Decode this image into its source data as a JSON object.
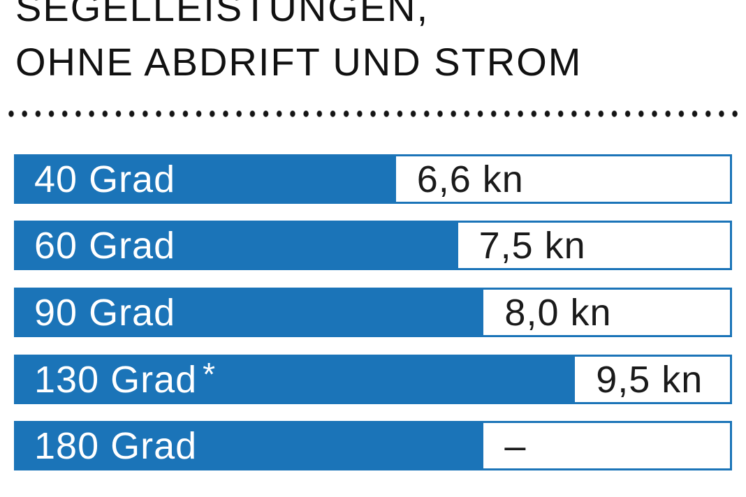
{
  "header": {
    "title_line1": "SEGELLEISTUNGEN,",
    "title_line2": "OHNE ABDRIFT UND STROM"
  },
  "colors": {
    "bar_blue": "#1b74b8",
    "text_dark": "#141414",
    "label_white": "#ffffff"
  },
  "chart_data": {
    "type": "bar",
    "orientation": "horizontal",
    "title": "SEGELLEISTUNGEN, OHNE ABDRIFT UND STROM",
    "categories": [
      "40 Grad",
      "60 Grad",
      "90 Grad",
      "130 Grad *",
      "180 Grad"
    ],
    "values": [
      6.6,
      7.5,
      8.0,
      9.5,
      null
    ],
    "value_labels": [
      "6,6 kn",
      "7,5 kn",
      "8,0 kn",
      "9,5 kn",
      "–"
    ],
    "unit": "kn",
    "footnote_marker_on": "130 Grad",
    "bar_fractions_of_track": [
      0.532,
      0.619,
      0.655,
      0.783,
      0.655
    ],
    "legend": "none",
    "grid": "off"
  },
  "rows": [
    {
      "label": "40 Grad",
      "note": "",
      "value": "6,6 kn",
      "bar_pct": 53.2
    },
    {
      "label": "60 Grad",
      "note": "",
      "value": "7,5 kn",
      "bar_pct": 61.9
    },
    {
      "label": "90 Grad",
      "note": "",
      "value": "8,0 kn",
      "bar_pct": 65.5
    },
    {
      "label": "130 Grad",
      "note": "*",
      "value": "9,5 kn",
      "bar_pct": 78.3
    },
    {
      "label": "180 Grad",
      "note": "",
      "value": "–",
      "bar_pct": 65.5
    }
  ]
}
